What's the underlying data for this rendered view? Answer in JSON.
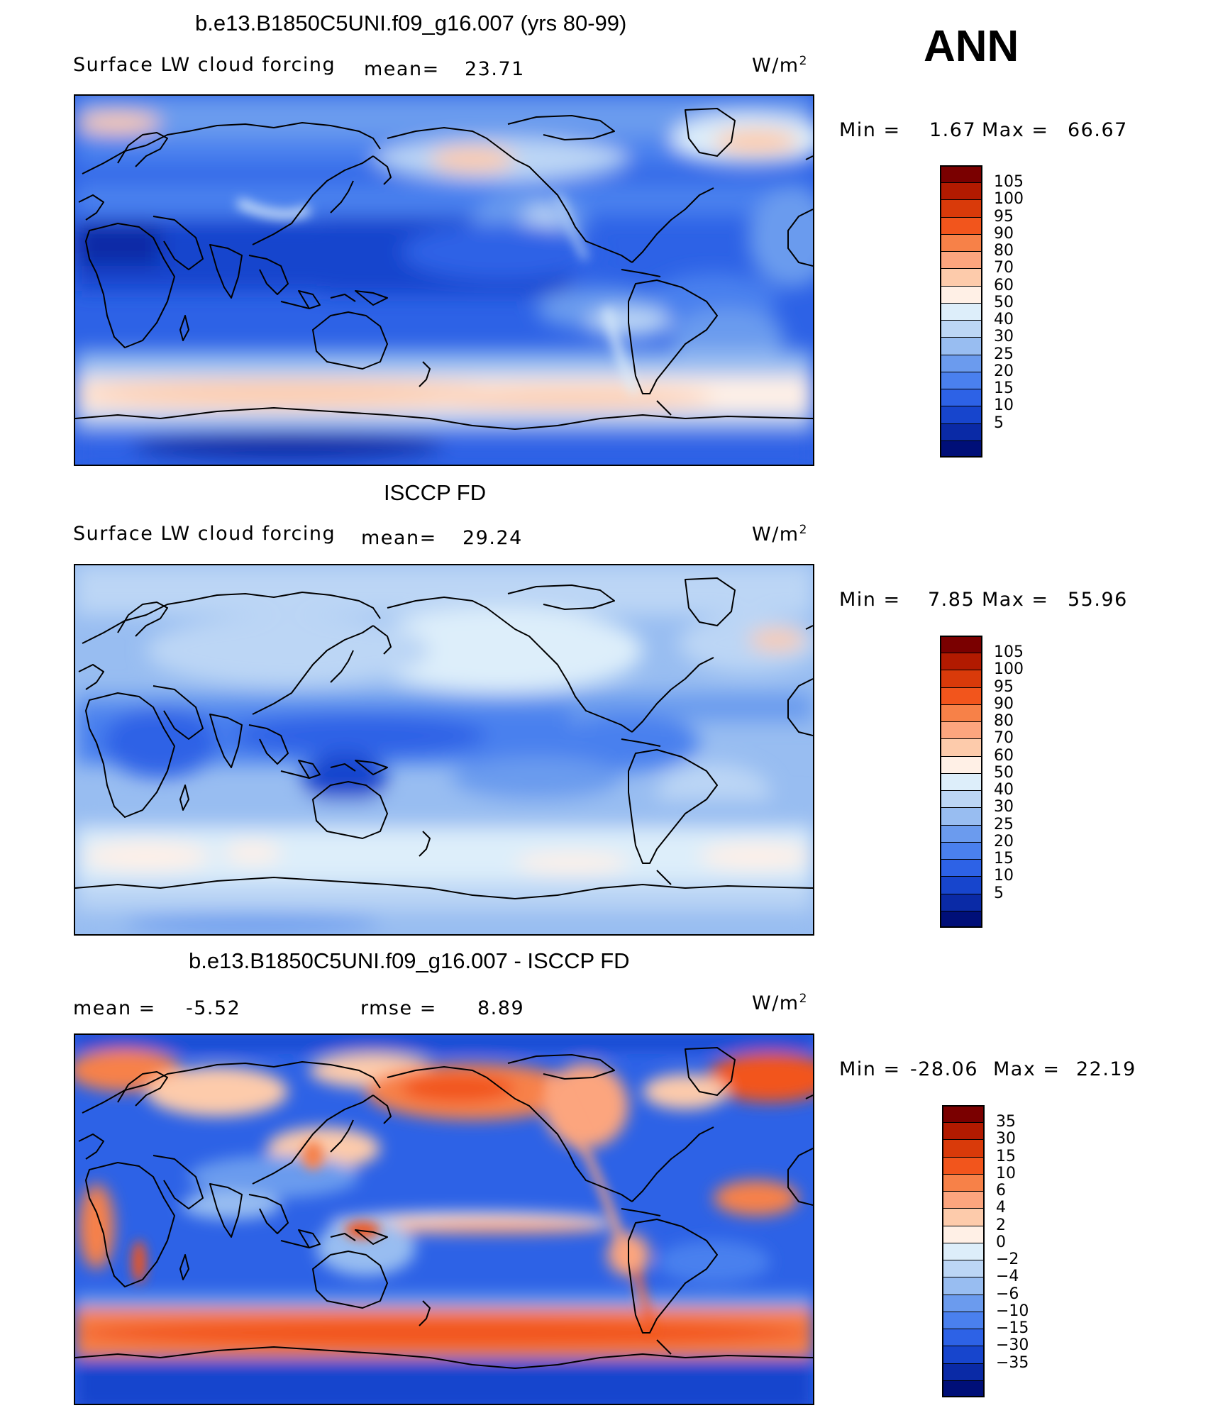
{
  "season": "ANN",
  "panels": [
    {
      "id": "model",
      "title": "b.e13.B1850C5UNI.f09_g16.007 (yrs 80-99)",
      "field_label": "Surface LW cloud forcing",
      "mean_label": "mean=",
      "mean_value": "23.71",
      "units_base": "W/m",
      "units_exp": "2",
      "min_label": "Min =",
      "min_value": "1.67",
      "max_label": "Max =",
      "max_value": "66.67",
      "colorbar": {
        "colors": [
          "#7a0000",
          "#b21a00",
          "#d93a0a",
          "#f2551c",
          "#f78148",
          "#fca57e",
          "#fdcbab",
          "#fff0e6",
          "#ddeefa",
          "#bcd6f5",
          "#98bdf1",
          "#6b9bee",
          "#4a80ee",
          "#2d62e6",
          "#1745cd",
          "#0a2aa6",
          "#000f78"
        ],
        "ticks": [
          "105",
          "100",
          "95",
          "90",
          "80",
          "70",
          "60",
          "50",
          "40",
          "30",
          "25",
          "20",
          "15",
          "10",
          "5"
        ]
      },
      "map_style": "model"
    },
    {
      "id": "obs",
      "title": "ISCCP FD",
      "field_label": "Surface LW cloud forcing",
      "mean_label": "mean=",
      "mean_value": "29.24",
      "units_base": "W/m",
      "units_exp": "2",
      "min_label": "Min =",
      "min_value": "7.85",
      "max_label": "Max =",
      "max_value": "55.96",
      "colorbar": {
        "colors": [
          "#7a0000",
          "#b21a00",
          "#d93a0a",
          "#f2551c",
          "#f78148",
          "#fca57e",
          "#fdcbab",
          "#fff0e6",
          "#ddeefa",
          "#bcd6f5",
          "#98bdf1",
          "#6b9bee",
          "#4a80ee",
          "#2d62e6",
          "#1745cd",
          "#0a2aa6",
          "#000f78"
        ],
        "ticks": [
          "105",
          "100",
          "95",
          "90",
          "80",
          "70",
          "60",
          "50",
          "40",
          "30",
          "25",
          "20",
          "15",
          "10",
          "5"
        ]
      },
      "map_style": "obs"
    },
    {
      "id": "diff",
      "title": "b.e13.B1850C5UNI.f09_g16.007 - ISCCP FD",
      "mean_label": "mean =",
      "mean_value": "-5.52",
      "rmse_label": "rmse =",
      "rmse_value": "8.89",
      "units_base": "W/m",
      "units_exp": "2",
      "min_label": "Min =",
      "min_value": "-28.06",
      "max_label": "Max =",
      "max_value": "22.19",
      "colorbar": {
        "colors": [
          "#7a0000",
          "#b21a00",
          "#d93a0a",
          "#f2551c",
          "#f78148",
          "#fca57e",
          "#fdcbab",
          "#fff0e6",
          "#ddeefa",
          "#bcd6f5",
          "#98bdf1",
          "#6b9bee",
          "#4a80ee",
          "#2d62e6",
          "#1745cd",
          "#0a2aa6",
          "#000f78"
        ],
        "ticks": [
          "35",
          "30",
          "15",
          "10",
          "6",
          "4",
          "2",
          "0",
          "-2",
          "-4",
          "-6",
          "-10",
          "-15",
          "-30",
          "-35"
        ]
      },
      "map_style": "diff"
    }
  ],
  "chart_data": {
    "type": "heatmap",
    "projection": "cylindrical equidistant, Pacific-centered",
    "season": "ANN",
    "panels": [
      {
        "title": "b.e13.B1850C5UNI.f09_g16.007 (yrs 80-99)",
        "field": "Surface LW cloud forcing",
        "units": "W/m2",
        "mean": 23.71,
        "min": 1.67,
        "max": 66.67,
        "contour_levels": [
          5,
          10,
          15,
          20,
          25,
          30,
          40,
          50,
          60,
          70,
          80,
          90,
          95,
          100,
          105
        ]
      },
      {
        "title": "ISCCP FD",
        "field": "Surface LW cloud forcing",
        "units": "W/m2",
        "mean": 29.24,
        "min": 7.85,
        "max": 55.96,
        "contour_levels": [
          5,
          10,
          15,
          20,
          25,
          30,
          40,
          50,
          60,
          70,
          80,
          90,
          95,
          100,
          105
        ]
      },
      {
        "title": "b.e13.B1850C5UNI.f09_g16.007 - ISCCP FD",
        "units": "W/m2",
        "mean": -5.52,
        "rmse": 8.89,
        "min": -28.06,
        "max": 22.19,
        "contour_levels": [
          -35,
          -30,
          -15,
          -10,
          -6,
          -4,
          -2,
          0,
          2,
          4,
          6,
          10,
          15,
          30,
          35
        ]
      }
    ]
  }
}
